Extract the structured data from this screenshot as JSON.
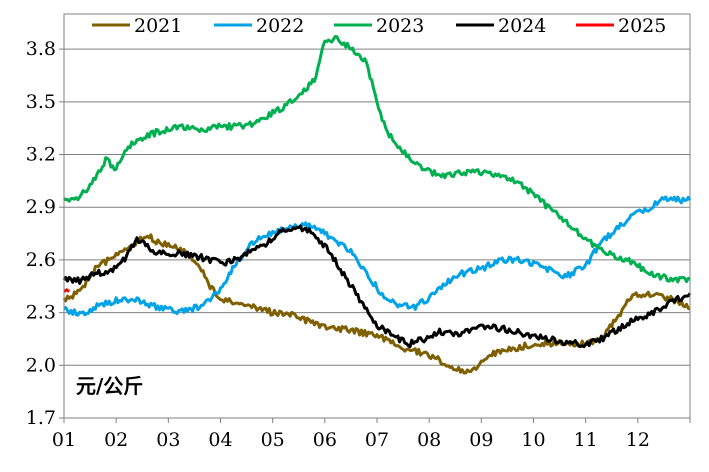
{
  "chart_data": {
    "type": "line",
    "title": "",
    "xlabel": "",
    "ylabel": "",
    "unit_label": "元/公斤",
    "ylim": [
      1.7,
      4.0
    ],
    "yticks": [
      1.7,
      2.0,
      2.3,
      2.6,
      2.9,
      3.2,
      3.5,
      3.8
    ],
    "ytick_labels": [
      "1.7",
      "2.0",
      "2.3",
      "2.6",
      "2.9",
      "3.2",
      "3.5",
      "3.8"
    ],
    "xlim": [
      0,
      12
    ],
    "xticks": [
      0,
      1,
      2,
      3,
      4,
      5,
      6,
      7,
      8,
      9,
      10,
      11
    ],
    "xtick_labels": [
      "01",
      "02",
      "03",
      "04",
      "05",
      "06",
      "07",
      "08",
      "09",
      "10",
      "11",
      "12"
    ],
    "grid": "horizontal",
    "legend_position": "top",
    "series": [
      {
        "name": "2021",
        "color": "#7f6000",
        "points": [
          [
            0,
            2.37
          ],
          [
            0.3,
            2.42
          ],
          [
            0.6,
            2.55
          ],
          [
            1.0,
            2.63
          ],
          [
            1.4,
            2.7
          ],
          [
            1.6,
            2.74
          ],
          [
            1.8,
            2.7
          ],
          [
            2.0,
            2.68
          ],
          [
            2.3,
            2.66
          ],
          [
            2.6,
            2.57
          ],
          [
            2.8,
            2.45
          ],
          [
            3.0,
            2.37
          ],
          [
            3.3,
            2.36
          ],
          [
            3.6,
            2.34
          ],
          [
            4.0,
            2.3
          ],
          [
            4.3,
            2.3
          ],
          [
            4.6,
            2.26
          ],
          [
            5.0,
            2.22
          ],
          [
            5.5,
            2.2
          ],
          [
            6.0,
            2.17
          ],
          [
            6.5,
            2.1
          ],
          [
            7.0,
            2.06
          ],
          [
            7.5,
            1.98
          ],
          [
            7.8,
            1.95
          ],
          [
            8.1,
            2.05
          ],
          [
            8.5,
            2.09
          ],
          [
            9.0,
            2.12
          ],
          [
            9.5,
            2.13
          ],
          [
            10.0,
            2.12
          ],
          [
            10.3,
            2.16
          ],
          [
            10.6,
            2.27
          ],
          [
            10.9,
            2.4
          ],
          [
            11.2,
            2.4
          ],
          [
            11.5,
            2.39
          ],
          [
            11.8,
            2.36
          ],
          [
            12.0,
            2.32
          ]
        ]
      },
      {
        "name": "2022",
        "color": "#00a2e8",
        "points": [
          [
            0,
            2.32
          ],
          [
            0.3,
            2.29
          ],
          [
            0.6,
            2.33
          ],
          [
            1.0,
            2.37
          ],
          [
            1.4,
            2.37
          ],
          [
            1.8,
            2.33
          ],
          [
            2.2,
            2.31
          ],
          [
            2.6,
            2.33
          ],
          [
            3.0,
            2.43
          ],
          [
            3.3,
            2.58
          ],
          [
            3.6,
            2.7
          ],
          [
            4.0,
            2.75
          ],
          [
            4.3,
            2.78
          ],
          [
            4.6,
            2.8
          ],
          [
            4.9,
            2.77
          ],
          [
            5.2,
            2.7
          ],
          [
            5.5,
            2.65
          ],
          [
            5.8,
            2.52
          ],
          [
            6.1,
            2.4
          ],
          [
            6.4,
            2.34
          ],
          [
            6.7,
            2.33
          ],
          [
            7.0,
            2.38
          ],
          [
            7.3,
            2.47
          ],
          [
            7.6,
            2.52
          ],
          [
            8.0,
            2.55
          ],
          [
            8.4,
            2.6
          ],
          [
            8.8,
            2.6
          ],
          [
            9.2,
            2.56
          ],
          [
            9.6,
            2.5
          ],
          [
            10.0,
            2.57
          ],
          [
            10.3,
            2.7
          ],
          [
            10.6,
            2.78
          ],
          [
            10.9,
            2.85
          ],
          [
            11.2,
            2.89
          ],
          [
            11.5,
            2.95
          ],
          [
            11.8,
            2.94
          ],
          [
            12.0,
            2.94
          ]
        ]
      },
      {
        "name": "2023",
        "color": "#00b050",
        "points": [
          [
            0,
            2.94
          ],
          [
            0.3,
            2.96
          ],
          [
            0.6,
            3.06
          ],
          [
            0.8,
            3.17
          ],
          [
            1.0,
            3.12
          ],
          [
            1.2,
            3.24
          ],
          [
            1.5,
            3.29
          ],
          [
            1.8,
            3.33
          ],
          [
            2.1,
            3.35
          ],
          [
            2.4,
            3.36
          ],
          [
            2.7,
            3.34
          ],
          [
            3.0,
            3.36
          ],
          [
            3.3,
            3.36
          ],
          [
            3.6,
            3.37
          ],
          [
            3.9,
            3.42
          ],
          [
            4.2,
            3.47
          ],
          [
            4.5,
            3.54
          ],
          [
            4.8,
            3.62
          ],
          [
            5.0,
            3.85
          ],
          [
            5.2,
            3.86
          ],
          [
            5.5,
            3.81
          ],
          [
            5.8,
            3.72
          ],
          [
            6.0,
            3.5
          ],
          [
            6.2,
            3.32
          ],
          [
            6.5,
            3.22
          ],
          [
            6.8,
            3.13
          ],
          [
            7.0,
            3.1
          ],
          [
            7.3,
            3.08
          ],
          [
            7.6,
            3.1
          ],
          [
            8.0,
            3.1
          ],
          [
            8.4,
            3.08
          ],
          [
            8.8,
            3.02
          ],
          [
            9.2,
            2.92
          ],
          [
            9.6,
            2.82
          ],
          [
            10.0,
            2.72
          ],
          [
            10.4,
            2.64
          ],
          [
            10.8,
            2.6
          ],
          [
            11.2,
            2.53
          ],
          [
            11.6,
            2.49
          ],
          [
            12.0,
            2.49
          ]
        ]
      },
      {
        "name": "2024",
        "color": "#000000",
        "points": [
          [
            0,
            2.49
          ],
          [
            0.3,
            2.48
          ],
          [
            0.6,
            2.52
          ],
          [
            1.0,
            2.55
          ],
          [
            1.2,
            2.62
          ],
          [
            1.4,
            2.72
          ],
          [
            1.6,
            2.68
          ],
          [
            1.8,
            2.64
          ],
          [
            2.1,
            2.64
          ],
          [
            2.4,
            2.63
          ],
          [
            2.7,
            2.61
          ],
          [
            3.0,
            2.58
          ],
          [
            3.3,
            2.6
          ],
          [
            3.6,
            2.65
          ],
          [
            3.9,
            2.7
          ],
          [
            4.2,
            2.77
          ],
          [
            4.5,
            2.78
          ],
          [
            4.8,
            2.75
          ],
          [
            5.1,
            2.64
          ],
          [
            5.4,
            2.5
          ],
          [
            5.7,
            2.36
          ],
          [
            6.0,
            2.23
          ],
          [
            6.3,
            2.17
          ],
          [
            6.6,
            2.12
          ],
          [
            6.9,
            2.15
          ],
          [
            7.2,
            2.19
          ],
          [
            7.6,
            2.18
          ],
          [
            8.0,
            2.22
          ],
          [
            8.4,
            2.21
          ],
          [
            8.8,
            2.18
          ],
          [
            9.2,
            2.16
          ],
          [
            9.6,
            2.13
          ],
          [
            10.0,
            2.12
          ],
          [
            10.3,
            2.15
          ],
          [
            10.7,
            2.22
          ],
          [
            11.0,
            2.27
          ],
          [
            11.3,
            2.3
          ],
          [
            11.6,
            2.35
          ],
          [
            12.0,
            2.41
          ]
        ]
      },
      {
        "name": "2025",
        "color": "#ff0000",
        "points": [
          [
            0,
            2.42
          ],
          [
            0.05,
            2.43
          ],
          [
            0.1,
            2.42
          ]
        ]
      }
    ]
  }
}
